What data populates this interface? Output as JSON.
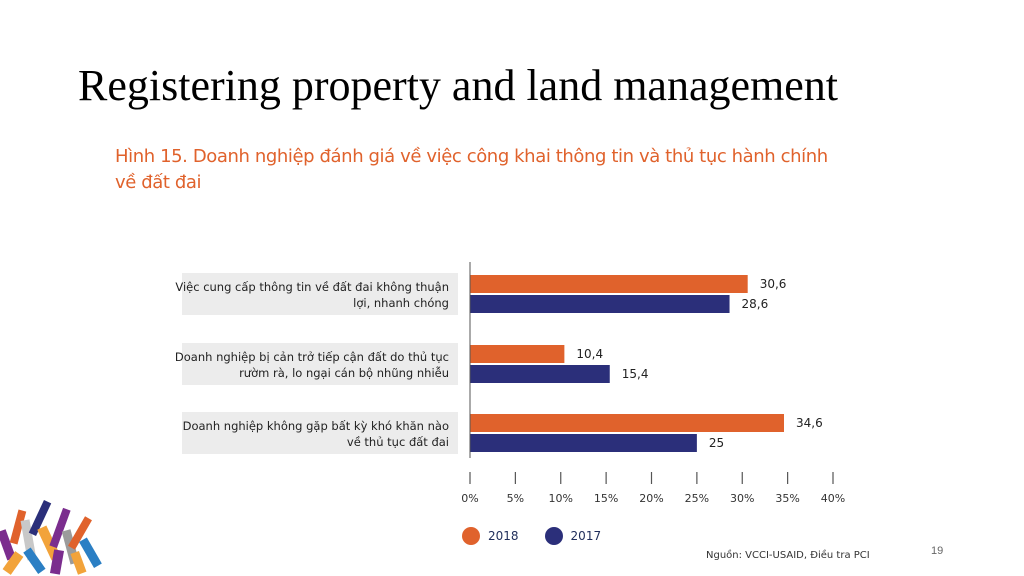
{
  "slide": {
    "title": "Registering property and land management",
    "page_number": "19"
  },
  "figure": {
    "title_line1": "Hình 15. Doanh nghiệp đánh giá về việc công khai thông tin và thủ tục hành chính",
    "title_line2": "về đất đai",
    "source": "Nguồn: VCCI-USAID, Điều tra PCI"
  },
  "colors": {
    "series_2018": "#e0622c",
    "series_2017": "#2b2f7a",
    "label_box": "#ececec",
    "axis": "#555555",
    "title_accent": "#e0622c"
  },
  "chart_data": {
    "type": "bar",
    "orientation": "horizontal",
    "title": "Hình 15. Doanh nghiệp đánh giá về việc công khai thông tin và thủ tục hành chính về đất đai",
    "categories": [
      [
        "Việc cung cấp thông tin về đất đai không thuận",
        "lợi, nhanh chóng"
      ],
      [
        "Doanh nghiệp bị cản trở tiếp cận đất do thủ tục",
        "rườm rà, lo ngại cán bộ nhũng nhiễu"
      ],
      [
        "Doanh nghiệp không gặp bất kỳ khó khăn nào",
        "về thủ tục đất đai"
      ]
    ],
    "series": [
      {
        "name": "2018",
        "values": [
          30.6,
          10.4,
          34.6
        ],
        "labels": [
          "30,6",
          "10,4",
          "34,6"
        ]
      },
      {
        "name": "2017",
        "values": [
          28.6,
          15.4,
          25
        ],
        "labels": [
          "28,6",
          "15,4",
          "25"
        ]
      }
    ],
    "xlim": [
      0,
      40
    ],
    "xticks": [
      0,
      5,
      10,
      15,
      20,
      25,
      30,
      35,
      40
    ],
    "xtick_labels": [
      "0%",
      "5%",
      "10%",
      "15%",
      "20%",
      "25%",
      "30%",
      "35%",
      "40%"
    ],
    "legend_position": "bottom",
    "grid": false
  }
}
